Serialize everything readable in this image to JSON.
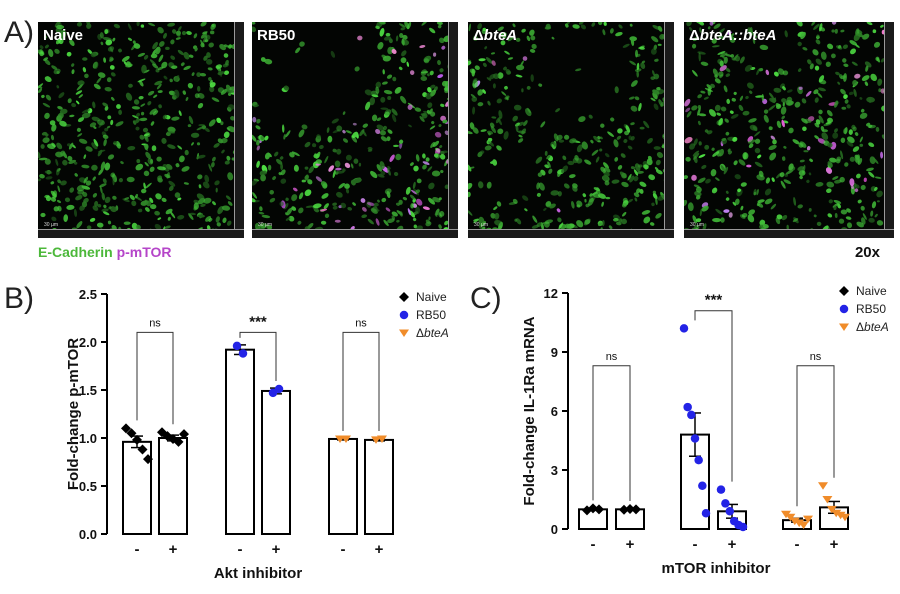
{
  "panel_a": {
    "letter": "A)",
    "conditions": [
      {
        "plain": "Naive",
        "prefix": "",
        "italic": "",
        "suffix": "",
        "scale": "30 µm"
      },
      {
        "plain": "RB50",
        "prefix": "",
        "italic": "",
        "suffix": "",
        "scale": "30 µm"
      },
      {
        "plain": "",
        "prefix": "Δ",
        "italic": "bteA",
        "suffix": "",
        "scale": "30 µm"
      },
      {
        "plain": "",
        "prefix": "Δ",
        "italic": "bteA::bteA",
        "suffix": "",
        "scale": "30 µm"
      }
    ],
    "stain_green": "E-Cadherin",
    "stain_magenta": "p-mTOR",
    "stain_green_color": "#4cb83a",
    "stain_magenta_color": "#b545c9",
    "magnification": "20x"
  },
  "chart_data": [
    {
      "panel": "B)",
      "type": "bar",
      "ylabel": "Fold-change p-mTOR",
      "xlabel": "Akt inhibitor",
      "ylim": [
        0,
        2.5
      ],
      "yticks": [
        "0.0",
        "0.5",
        "1.0",
        "1.5",
        "2.0",
        "2.5"
      ],
      "legend": [
        {
          "name": "Naive",
          "prefix": "",
          "italic": "",
          "color": "#000000",
          "marker": "diamond"
        },
        {
          "name": "RB50",
          "prefix": "",
          "italic": "",
          "color": "#2323e6",
          "marker": "circle"
        },
        {
          "name": "",
          "prefix": "Δ",
          "italic": "bteA",
          "color": "#f08c2a",
          "marker": "triangle"
        }
      ],
      "bars": [
        {
          "label": "-",
          "group": 0,
          "mean": 0.96,
          "sem": 0.06,
          "points": [
            1.1,
            1.05,
            0.98,
            0.88,
            0.78
          ],
          "color": "#000000",
          "marker": "diamond"
        },
        {
          "label": "+",
          "group": 0,
          "mean": 1.0,
          "sem": 0.03,
          "points": [
            1.06,
            1.02,
            0.99,
            0.96,
            1.04
          ],
          "color": "#000000",
          "marker": "diamond"
        },
        {
          "label": "-",
          "group": 1,
          "mean": 1.92,
          "sem": 0.05,
          "points": [
            1.96,
            1.88
          ],
          "color": "#2323e6",
          "marker": "circle"
        },
        {
          "label": "+",
          "group": 1,
          "mean": 1.49,
          "sem": 0.03,
          "points": [
            1.47,
            1.51
          ],
          "color": "#2323e6",
          "marker": "circle"
        },
        {
          "label": "-",
          "group": 2,
          "mean": 0.99,
          "sem": 0.01,
          "points": [
            0.99,
            0.99
          ],
          "color": "#f08c2a",
          "marker": "triangle"
        },
        {
          "label": "+",
          "group": 2,
          "mean": 0.98,
          "sem": 0.01,
          "points": [
            0.98,
            0.99
          ],
          "color": "#f08c2a",
          "marker": "triangle"
        }
      ],
      "comparisons": [
        {
          "pair": [
            0,
            1
          ],
          "label": "ns",
          "y": 2.1
        },
        {
          "pair": [
            2,
            3
          ],
          "label": "***",
          "y": 2.1
        },
        {
          "pair": [
            4,
            5
          ],
          "label": "ns",
          "y": 2.1
        }
      ]
    },
    {
      "panel": "C)",
      "type": "bar",
      "ylabel": "Fold-change IL-1Ra mRNA",
      "xlabel": "mTOR inhibitor",
      "ylim": [
        0,
        12
      ],
      "yticks": [
        "0",
        "3",
        "6",
        "9",
        "12"
      ],
      "legend": [
        {
          "name": "Naive",
          "prefix": "",
          "italic": "",
          "color": "#000000",
          "marker": "diamond"
        },
        {
          "name": "RB50",
          "prefix": "",
          "italic": "",
          "color": "#2323e6",
          "marker": "circle"
        },
        {
          "name": "",
          "prefix": "Δ",
          "italic": "bteA",
          "color": "#f08c2a",
          "marker": "triangle"
        }
      ],
      "bars": [
        {
          "label": "-",
          "group": 0,
          "mean": 1.0,
          "sem": 0.05,
          "points": [
            0.95,
            1.05,
            1.0
          ],
          "color": "#000000",
          "marker": "diamond"
        },
        {
          "label": "+",
          "group": 0,
          "mean": 1.0,
          "sem": 0.03,
          "points": [
            0.98,
            1.02,
            1.0
          ],
          "color": "#000000",
          "marker": "diamond"
        },
        {
          "label": "-",
          "group": 1,
          "mean": 4.8,
          "sem": 1.1,
          "points": [
            10.2,
            6.2,
            5.8,
            4.6,
            3.5,
            2.2,
            0.8
          ],
          "color": "#2323e6",
          "marker": "circle"
        },
        {
          "label": "+",
          "group": 1,
          "mean": 0.9,
          "sem": 0.35,
          "points": [
            2.0,
            1.3,
            0.9,
            0.4,
            0.2,
            0.1
          ],
          "color": "#2323e6",
          "marker": "circle"
        },
        {
          "label": "-",
          "group": 2,
          "mean": 0.45,
          "sem": 0.1,
          "points": [
            0.75,
            0.6,
            0.4,
            0.3,
            0.2,
            0.5
          ],
          "color": "#f08c2a",
          "marker": "triangle"
        },
        {
          "label": "+",
          "group": 2,
          "mean": 1.1,
          "sem": 0.3,
          "points": [
            2.2,
            1.5,
            1.0,
            0.8,
            0.7,
            0.6
          ],
          "color": "#f08c2a",
          "marker": "triangle"
        }
      ],
      "comparisons": [
        {
          "pair": [
            0,
            1
          ],
          "label": "ns",
          "y": 8.3
        },
        {
          "pair": [
            2,
            3
          ],
          "label": "***",
          "y": 11.1
        },
        {
          "pair": [
            4,
            5
          ],
          "label": "ns",
          "y": 8.3
        }
      ]
    }
  ]
}
